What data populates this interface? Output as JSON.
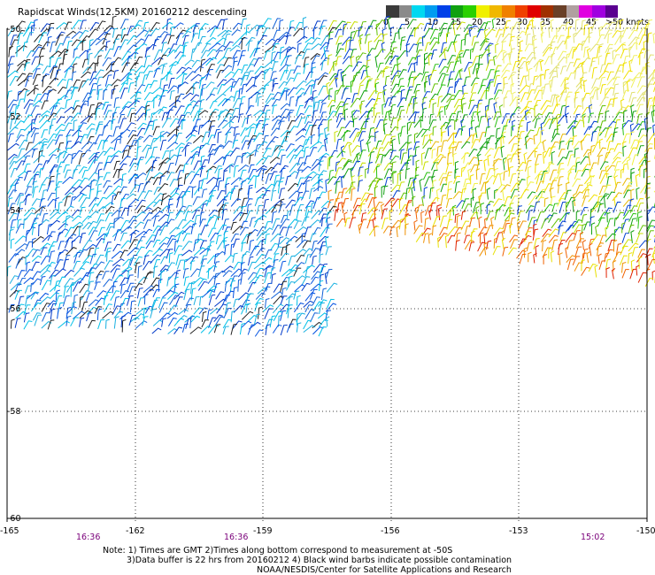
{
  "title": "Rapidscat Winds(12.5KM) 20160212 descending",
  "wind_speed_scale": {
    "labels": [
      "0",
      "5",
      "10",
      "15",
      "20",
      "25",
      "30",
      "35",
      "40",
      "45",
      ">50 knots"
    ],
    "colors": [
      "#3a3a3a",
      "#8a8a8a",
      "#00d8f0",
      "#009cf0",
      "#0040e8",
      "#10a010",
      "#2ad000",
      "#f0f000",
      "#f0b800",
      "#f08000",
      "#f04000",
      "#e00000",
      "#a03000",
      "#6a4028",
      "#b0a0a0",
      "#e000e0",
      "#a000e0",
      "#5a0090"
    ]
  },
  "map": {
    "lat_labels": [
      "-50",
      "-52",
      "-54",
      "-56",
      "-58",
      "-60"
    ],
    "lon_labels": [
      "-165",
      "-162",
      "-159",
      "-156",
      "-153",
      "-150"
    ],
    "time_labels": [
      "16:36",
      "16:36",
      "15:02"
    ]
  },
  "notes": {
    "line1": "Note: 1) Times are GMT 2)Times along bottom correspond to measurement at -50S",
    "line2": "3)Data buffer is 22 hrs from 20160212 4) Black wind barbs indicate possible contamination",
    "line3": "NOAA/NESDIS/Center for Satellite Applications and Research"
  }
}
